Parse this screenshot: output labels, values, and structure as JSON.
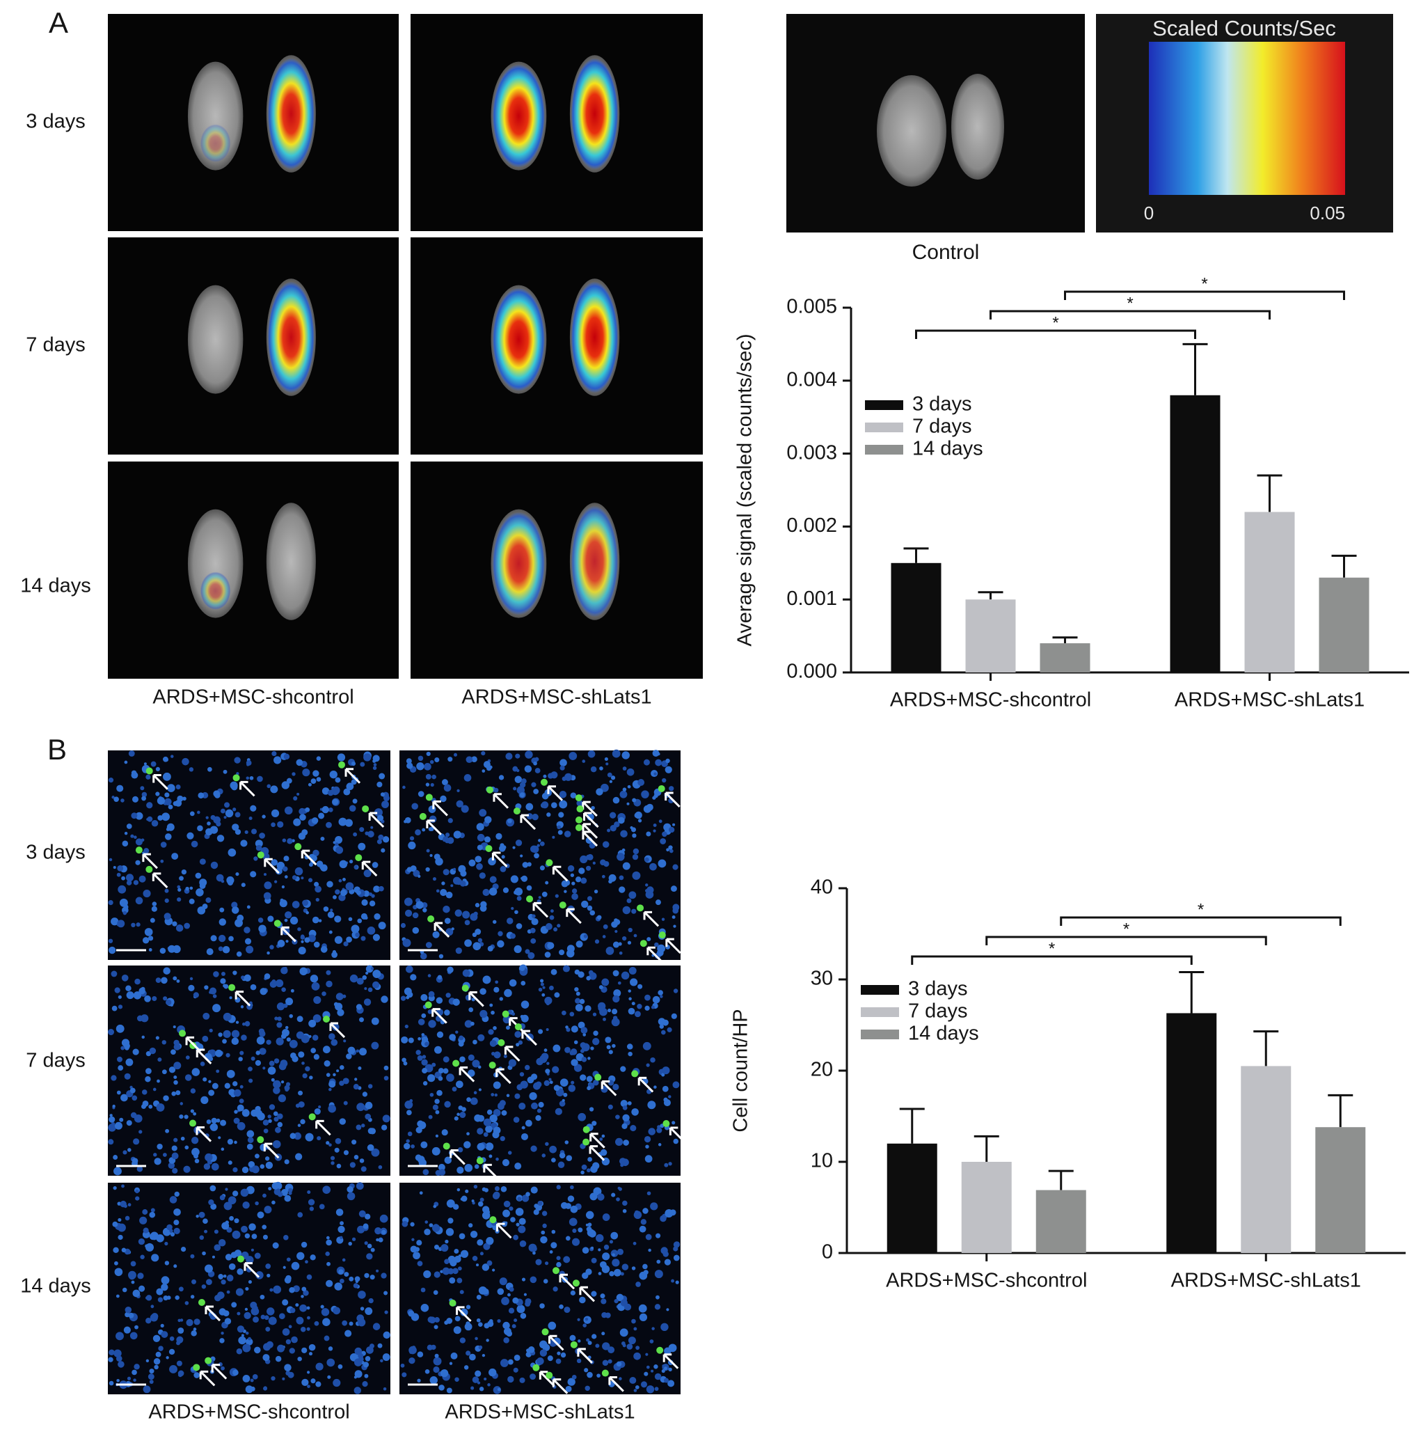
{
  "panels": [
    {
      "label": "A",
      "row_labels": [
        "3 days",
        "7 days",
        "14 days"
      ],
      "column_labels": [
        "ARDS+MSC-shcontrol",
        "ARDS+MSC-shLats1"
      ],
      "control_label": "Control",
      "colorbar": {
        "title": "Scaled Counts/Sec",
        "ticks": [
          0,
          0.05
        ]
      }
    },
    {
      "label": "B",
      "row_labels": [
        "3 days",
        "7 days",
        "14 days"
      ],
      "column_labels": [
        "ARDS+MSC-shcontrol",
        "ARDS+MSC-shLats1"
      ]
    }
  ],
  "chart_data": [
    {
      "type": "bar",
      "ylabel": "Average signal (scaled counts/sec)",
      "categories": [
        "ARDS+MSC-shcontrol",
        "ARDS+MSC-shLats1"
      ],
      "series": [
        {
          "name": "3 days",
          "color": "#0d0d0d",
          "values": [
            0.0015,
            0.0038
          ],
          "errors": [
            0.0002,
            0.0007
          ]
        },
        {
          "name": "7 days",
          "color": "#bfc0c5",
          "values": [
            0.001,
            0.0022
          ],
          "errors": [
            0.0001,
            0.0005
          ]
        },
        {
          "name": "14 days",
          "color": "#8e908f",
          "values": [
            0.0004,
            0.0013
          ],
          "errors": [
            8e-05,
            0.0003
          ]
        }
      ],
      "ylim": [
        0,
        0.005
      ],
      "yticks": [
        {
          "value": 0,
          "label": "0.000"
        },
        0.001,
        0.002,
        0.003,
        0.004,
        0.005
      ],
      "annotations": [
        "*",
        "*",
        "*"
      ],
      "legend": "upper left"
    },
    {
      "type": "bar",
      "ylabel": "Cell count/HP",
      "categories": [
        "ARDS+MSC-shcontrol",
        "ARDS+MSC-shLats1"
      ],
      "series": [
        {
          "name": "3 days",
          "color": "#0d0d0d",
          "values": [
            12,
            26.3
          ],
          "errors": [
            3.8,
            4.5
          ]
        },
        {
          "name": "7 days",
          "color": "#bfc0c5",
          "values": [
            10,
            20.5
          ],
          "errors": [
            2.8,
            3.8
          ]
        },
        {
          "name": "14 days",
          "color": "#8e908f",
          "values": [
            6.9,
            13.8
          ],
          "errors": [
            2.1,
            3.5
          ]
        }
      ],
      "ylim": [
        0,
        40
      ],
      "yticks": [
        0,
        10,
        20,
        30,
        40
      ],
      "annotations": [
        "*",
        "*",
        "*"
      ],
      "legend": "upper left"
    }
  ]
}
